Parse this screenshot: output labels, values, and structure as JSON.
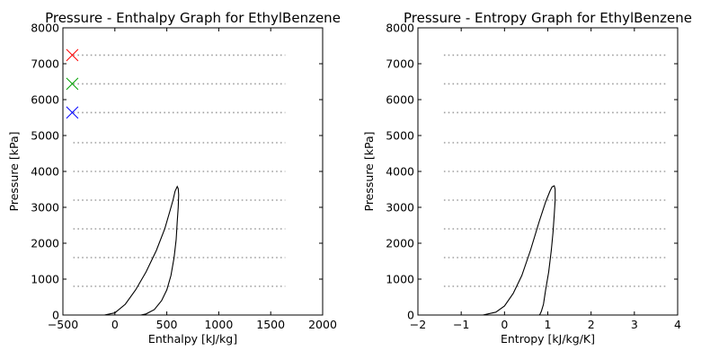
{
  "chart_data": [
    {
      "type": "line",
      "title": "Pressure - Enthalpy Graph for EthylBenzene",
      "xlabel": "Enthalpy [kJ/kg]",
      "ylabel": "Pressure [kPa]",
      "xlim": [
        -500,
        2000
      ],
      "ylim": [
        0,
        8000
      ],
      "xticks": [
        -500,
        0,
        500,
        1000,
        1500,
        2000
      ],
      "xtick_labels": [
        "−500",
        "0",
        "500",
        "1000",
        "1500",
        "2000"
      ],
      "yticks": [
        0,
        1000,
        2000,
        3000,
        4000,
        5000,
        6000,
        7000,
        8000
      ],
      "ytick_labels": [
        "0",
        "1000",
        "2000",
        "3000",
        "4000",
        "5000",
        "6000",
        "7000",
        "8000"
      ],
      "grid": false,
      "isobars": {
        "pressures": [
          800,
          1600,
          2400,
          3200,
          4000,
          4800,
          5640,
          6440,
          7240
        ],
        "x_range": [
          -400,
          1640
        ],
        "color": "#a0a0a0",
        "style": "dotted"
      },
      "saturation_dome": {
        "color": "#000000",
        "x": [
          -100,
          0,
          100,
          200,
          300,
          400,
          480,
          530,
          560,
          580,
          600,
          610,
          614,
          610,
          600,
          590,
          570,
          540,
          500,
          450,
          380,
          300,
          250,
          200
        ],
        "y": [
          0,
          60,
          300,
          700,
          1200,
          1800,
          2400,
          2900,
          3200,
          3450,
          3580,
          3520,
          3350,
          3000,
          2600,
          2100,
          1600,
          1100,
          700,
          400,
          150,
          30,
          0,
          0
        ]
      },
      "markers": [
        {
          "x": -410,
          "y": 7240,
          "color": "#ff0000",
          "symbol": "x"
        },
        {
          "x": -410,
          "y": 6440,
          "color": "#00a000",
          "symbol": "x"
        },
        {
          "x": -410,
          "y": 5640,
          "color": "#0000ff",
          "symbol": "x"
        }
      ]
    },
    {
      "type": "line",
      "title": "Pressure - Entropy Graph for EthylBenzene",
      "xlabel": "Entropy [kJ/kg/K]",
      "ylabel": "Pressure [kPa]",
      "xlim": [
        -2,
        4
      ],
      "ylim": [
        0,
        8000
      ],
      "xticks": [
        -2,
        -1,
        0,
        1,
        2,
        3,
        4
      ],
      "xtick_labels": [
        "−2",
        "−1",
        "0",
        "1",
        "2",
        "3",
        "4"
      ],
      "yticks": [
        0,
        1000,
        2000,
        3000,
        4000,
        5000,
        6000,
        7000,
        8000
      ],
      "ytick_labels": [
        "0",
        "1000",
        "2000",
        "3000",
        "4000",
        "5000",
        "6000",
        "7000",
        "8000"
      ],
      "grid": false,
      "isobars": {
        "pressures": [
          800,
          1600,
          2400,
          3200,
          4000,
          4800,
          5640,
          6440,
          7240
        ],
        "x_range": [
          -1.4,
          3.75
        ],
        "color": "#a0a0a0",
        "style": "dotted"
      },
      "saturation_dome": {
        "color": "#000000",
        "x": [
          -0.5,
          -0.2,
          0.0,
          0.2,
          0.4,
          0.6,
          0.8,
          0.95,
          1.05,
          1.1,
          1.15,
          1.17,
          1.17,
          1.15,
          1.12,
          1.08,
          1.02,
          0.95,
          0.9,
          0.85,
          0.82,
          0.8
        ],
        "y": [
          0,
          80,
          250,
          600,
          1100,
          1800,
          2600,
          3150,
          3450,
          3570,
          3600,
          3500,
          3200,
          2800,
          2300,
          1800,
          1200,
          700,
          300,
          100,
          20,
          0
        ]
      },
      "markers": []
    }
  ]
}
